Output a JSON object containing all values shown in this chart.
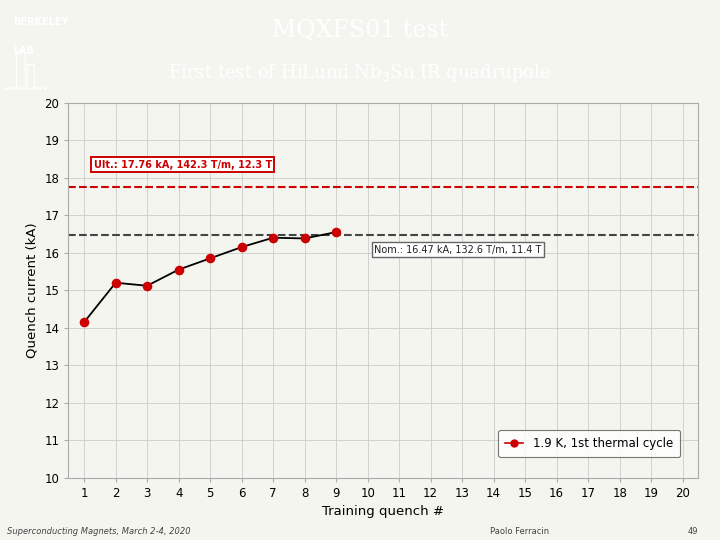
{
  "title_line1": "MQXFS01 test",
  "title_line2": "First test of HiLumi Nb$_3$Sn IR quadrupole",
  "header_bg": "#005f6b",
  "header_text_color": "#ffffff",
  "plot_bg": "#f5f5f0",
  "grid_color": "#cccccc",
  "xlabel": "Training quench #",
  "ylabel": "Quench current (kA)",
  "xlim": [
    0.5,
    20.5
  ],
  "ylim": [
    10,
    20
  ],
  "xticks": [
    1,
    2,
    3,
    4,
    5,
    6,
    7,
    8,
    9,
    10,
    11,
    12,
    13,
    14,
    15,
    16,
    17,
    18,
    19,
    20
  ],
  "yticks": [
    10,
    11,
    12,
    13,
    14,
    15,
    16,
    17,
    18,
    19,
    20
  ],
  "data_x": [
    1,
    2,
    3,
    4,
    5,
    6,
    7,
    8,
    9
  ],
  "data_y": [
    14.15,
    15.2,
    15.12,
    15.55,
    15.85,
    16.15,
    16.4,
    16.38,
    16.55
  ],
  "data_color": "#cc0000",
  "data_label": "1.9 K, 1st thermal cycle",
  "line_color": "#000000",
  "ult_y": 17.76,
  "ult_color": "#cc0000",
  "ult_label": "Ult.: 17.76 kA, 142.3 T/m, 12.3 T",
  "nom_y": 16.47,
  "nom_color": "#444444",
  "nom_label": "Nom.: 16.47 kA, 132.6 T/m, 11.4 T",
  "footer_left": "Superconducting Magnets, March 2-4, 2020",
  "footer_right": "Paolo Ferracin",
  "footer_num": "49",
  "logo_text_line1": "BERKELEY",
  "logo_text_line2": "LAB"
}
